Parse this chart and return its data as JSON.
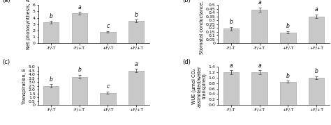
{
  "categories": [
    "-F/-T",
    "-F/+T",
    "+F/-T",
    "+F/+T"
  ],
  "panel_a": {
    "label": "Net photosynthesis, A",
    "tag": "(a)",
    "values": [
      3.25,
      4.7,
      1.75,
      3.5
    ],
    "letters": [
      "b",
      "a",
      "c",
      "b"
    ],
    "ylim": [
      0,
      6
    ],
    "yticks": [
      0,
      1,
      2,
      3,
      4,
      5,
      6
    ]
  },
  "panel_b": {
    "label": "Stomatal conductance, Gₛ",
    "tag": "(b)",
    "values": [
      0.19,
      0.44,
      0.14,
      0.35
    ],
    "letters": [
      "b",
      "a",
      "b",
      "a"
    ],
    "ylim": [
      0,
      0.5
    ],
    "yticks": [
      0,
      0.05,
      0.1,
      0.15,
      0.2,
      0.25,
      0.3,
      0.35,
      0.4,
      0.45,
      0.5
    ]
  },
  "panel_c": {
    "label": "Transpiration, E",
    "tag": "(c)",
    "values": [
      2.5,
      3.7,
      1.6,
      4.5
    ],
    "letters": [
      "b",
      "b",
      "c",
      "a"
    ],
    "ylim": [
      0,
      5
    ],
    "yticks": [
      0,
      0.5,
      1.0,
      1.5,
      2.0,
      2.5,
      3.0,
      3.5,
      4.0,
      4.5,
      5.0
    ]
  },
  "panel_d": {
    "label": "WUE (µmol CO₂\nassimilated/water\ntranspired)",
    "tag": "(d)",
    "values": [
      1.2,
      1.2,
      0.85,
      1.0
    ],
    "letters": [
      "a",
      "a",
      "b",
      "b"
    ],
    "ylim": [
      0,
      1.4
    ],
    "yticks": [
      0,
      0.2,
      0.4,
      0.6,
      0.8,
      1.0,
      1.2,
      1.4
    ]
  },
  "bar_color": "#c8c8c8",
  "bar_edge_color": "#999999",
  "bar_width": 0.55,
  "errors_a": [
    0.22,
    0.18,
    0.12,
    0.18
  ],
  "errors_b": [
    0.025,
    0.025,
    0.015,
    0.025
  ],
  "errors_c": [
    0.22,
    0.22,
    0.15,
    0.22
  ],
  "errors_d": [
    0.07,
    0.07,
    0.04,
    0.05
  ],
  "fontsize_label": 4.8,
  "fontsize_tick": 4.5,
  "fontsize_letter": 5.5,
  "fontsize_tag": 6.0
}
